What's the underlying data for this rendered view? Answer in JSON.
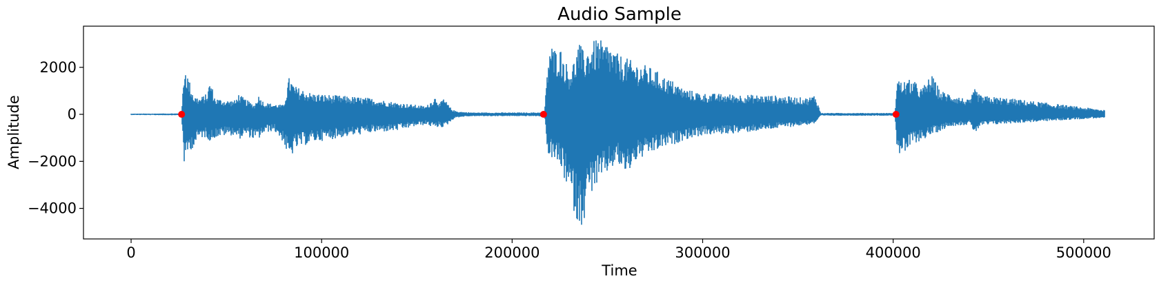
{
  "chart_data": {
    "type": "line",
    "title": "Audio Sample",
    "xlabel": "Time",
    "ylabel": "Amplitude",
    "xlim": [
      -25000,
      537000
    ],
    "ylim": [
      -5300,
      3750
    ],
    "x_ticks": [
      0,
      100000,
      200000,
      300000,
      400000,
      500000
    ],
    "x_tick_labels": [
      "0",
      "100000",
      "200000",
      "300000",
      "400000",
      "500000"
    ],
    "y_ticks": [
      -4000,
      -2000,
      0,
      2000
    ],
    "y_tick_labels": [
      "−4000",
      "−2000",
      "0",
      "2000"
    ],
    "grid": false,
    "legend": "none",
    "series": [
      {
        "style": "waveform-envelope",
        "color": "#1f77b4",
        "x": [
          0,
          25000,
          26500,
          28000,
          30000,
          33000,
          36000,
          40000,
          41500,
          44000,
          50000,
          55000,
          56000,
          60000,
          65000,
          66500,
          70000,
          75000,
          80000,
          83000,
          86000,
          95000,
          110000,
          125000,
          140000,
          150000,
          155000,
          160000,
          162000,
          164000,
          168000,
          170000,
          175000,
          180000,
          185000,
          190000,
          200000,
          210000,
          215000,
          217000,
          219000,
          220000,
          222000,
          225000,
          230000,
          233000,
          235000,
          238000,
          240000,
          245000,
          248000,
          250000,
          255000,
          260000,
          265000,
          270000,
          275000,
          280000,
          285000,
          290000,
          300000,
          320000,
          340000,
          355000,
          359000,
          362000,
          375000,
          390000,
          400000,
          401000,
          402000,
          404000,
          410000,
          415000,
          420000,
          425000,
          430000,
          440000,
          443000,
          446000,
          460000,
          480000,
          500000,
          511000
        ],
        "upper": [
          30,
          40,
          40,
          2200,
          1600,
          800,
          700,
          900,
          1500,
          700,
          600,
          600,
          900,
          650,
          400,
          850,
          500,
          450,
          400,
          1600,
          1200,
          900,
          800,
          700,
          500,
          400,
          350,
          800,
          450,
          700,
          250,
          150,
          100,
          80,
          80,
          80,
          80,
          80,
          90,
          100,
          2500,
          3100,
          2800,
          2900,
          1900,
          2400,
          3100,
          2600,
          2900,
          3300,
          3000,
          3100,
          2600,
          2400,
          2200,
          2100,
          1900,
          1600,
          1400,
          1100,
          900,
          850,
          800,
          700,
          850,
          60,
          60,
          60,
          60,
          100,
          1700,
          1400,
          1500,
          1100,
          1700,
          1000,
          900,
          600,
          1100,
          800,
          700,
          500,
          300,
          200
        ],
        "lower": [
          -30,
          -40,
          -40,
          -2300,
          -1600,
          -1400,
          -1000,
          -1000,
          -1200,
          -1000,
          -900,
          -900,
          -1100,
          -900,
          -1100,
          -1100,
          -800,
          -700,
          -1200,
          -2000,
          -1500,
          -1200,
          -1000,
          -800,
          -700,
          -500,
          -450,
          -600,
          -500,
          -600,
          -300,
          -150,
          -100,
          -80,
          -80,
          -80,
          -80,
          -80,
          -90,
          -100,
          -1900,
          -1800,
          -2000,
          -2200,
          -3400,
          -4300,
          -4900,
          -4500,
          -3500,
          -3000,
          -2800,
          -2500,
          -2100,
          -2600,
          -2000,
          -1800,
          -1600,
          -1400,
          -1300,
          -1100,
          -900,
          -800,
          -600,
          -450,
          -400,
          -60,
          -60,
          -60,
          -60,
          -100,
          -1400,
          -1900,
          -1300,
          -1100,
          -900,
          -700,
          -500,
          -450,
          -800,
          -500,
          -400,
          -300,
          -200,
          -150
        ]
      },
      {
        "style": "markers",
        "color": "#ff0000",
        "x": [
          26500,
          216500,
          401500
        ],
        "y": [
          0,
          0,
          0
        ]
      }
    ]
  }
}
